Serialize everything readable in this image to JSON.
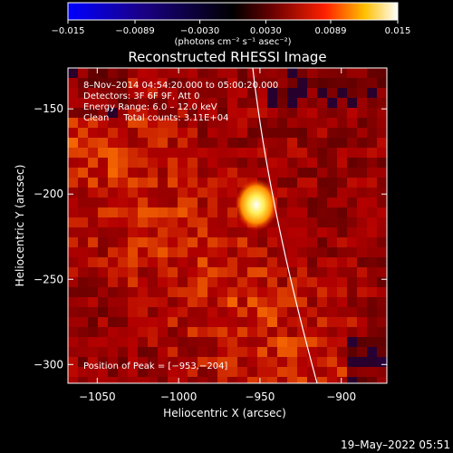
{
  "colorbar": {
    "ticks": [
      -0.015,
      -0.0089,
      -0.003,
      0.003,
      0.0089,
      0.015
    ],
    "tick_labels": [
      "−0.015",
      "−0.0089",
      "−0.0030",
      "0.0030",
      "0.0089",
      "0.015"
    ],
    "units": "(photons cm⁻² s⁻¹ asec⁻²)",
    "range": [
      -0.015,
      0.015
    ]
  },
  "chart_data": {
    "type": "heatmap",
    "title": "Reconstructed RHESSI Image",
    "xlabel": "Heliocentric X (arcsec)",
    "ylabel": "Heliocentric Y (arcsec)",
    "xlim": [
      -1068,
      -872
    ],
    "ylim": [
      -311,
      -126
    ],
    "x_ticks": [
      -1050,
      -1000,
      -950,
      -900
    ],
    "x_tick_labels": [
      "−1050",
      "−1000",
      "−950",
      "−900"
    ],
    "y_ticks": [
      -150,
      -200,
      -250,
      -300
    ],
    "y_tick_labels": [
      "−150",
      "−200",
      "−250",
      "−300"
    ],
    "annotations": [
      "8–Nov–2014 04:54:20.000 to 05:00:20.000",
      "Detectors: 3F 6F 9F, Att 0",
      "Energy Range: 6.0 – 12.0 keV",
      "Clean     Total counts: 3.11E+04"
    ],
    "peak_label": "Position of Peak = [−953,−204]",
    "peak": [
      -953,
      -204
    ],
    "colormap": [
      "#0000ff",
      "#000000",
      "#ff0000",
      "#ffff00",
      "#ffffff"
    ]
  },
  "footer": {
    "timestamp": "19–May–2022 05:51"
  }
}
